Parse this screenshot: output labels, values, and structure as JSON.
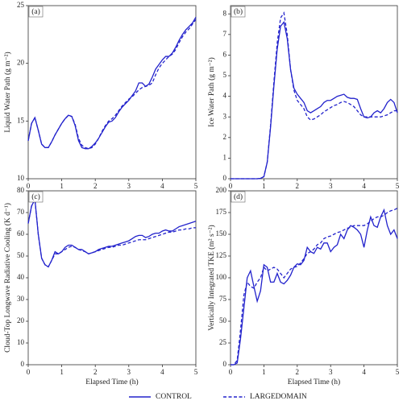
{
  "chart_data": [
    {
      "type": "line",
      "label": "(a)",
      "ylabel": "Liquid Water Path (g m⁻²)",
      "x": [
        0,
        0.1,
        0.2,
        0.3,
        0.4,
        0.5,
        0.6,
        0.7,
        0.8,
        0.9,
        1,
        1.1,
        1.2,
        1.3,
        1.4,
        1.5,
        1.6,
        1.7,
        1.8,
        1.9,
        2,
        2.1,
        2.2,
        2.3,
        2.4,
        2.5,
        2.6,
        2.7,
        2.8,
        2.9,
        3,
        3.1,
        3.2,
        3.3,
        3.4,
        3.5,
        3.6,
        3.7,
        3.8,
        3.9,
        4,
        4.1,
        4.2,
        4.3,
        4.4,
        4.5,
        4.6,
        4.7,
        4.8,
        4.9,
        5
      ],
      "xlim": [
        0,
        5
      ],
      "xticks": [
        0,
        1,
        2,
        3,
        4,
        5
      ],
      "ylim": [
        10,
        25
      ],
      "yticks": [
        10,
        15,
        20,
        25
      ],
      "series": [
        {
          "name": "CONTROL",
          "color": "#2222cc",
          "linestyle": "solid",
          "values": [
            13.3,
            14.8,
            15.3,
            14.2,
            13.0,
            12.7,
            12.7,
            13.2,
            13.8,
            14.3,
            14.8,
            15.2,
            15.5,
            15.4,
            14.6,
            13.3,
            12.7,
            12.6,
            12.6,
            12.8,
            13.1,
            13.5,
            14.0,
            14.5,
            14.9,
            15.0,
            15.3,
            15.8,
            16.2,
            16.5,
            16.8,
            17.2,
            17.6,
            18.3,
            18.3,
            18.0,
            18.2,
            18.8,
            19.5,
            19.9,
            20.3,
            20.6,
            20.6,
            20.9,
            21.4,
            22.0,
            22.5,
            22.9,
            23.2,
            23.5,
            24.0
          ]
        },
        {
          "name": "LARGEDOMAIN",
          "color": "#2222cc",
          "linestyle": "dashed",
          "values": [
            13.3,
            14.8,
            15.3,
            14.2,
            13.0,
            12.7,
            12.7,
            13.2,
            13.8,
            14.3,
            14.8,
            15.2,
            15.5,
            15.4,
            14.7,
            13.5,
            12.9,
            12.7,
            12.6,
            12.7,
            13.0,
            13.5,
            14.1,
            14.6,
            15.0,
            15.2,
            15.5,
            15.9,
            16.3,
            16.6,
            16.9,
            17.1,
            17.4,
            17.7,
            17.9,
            18.0,
            18.1,
            18.3,
            19.0,
            19.6,
            20.0,
            20.3,
            20.6,
            20.8,
            21.2,
            21.8,
            22.3,
            22.7,
            23.0,
            23.4,
            23.8
          ]
        }
      ]
    },
    {
      "type": "line",
      "label": "(b)",
      "ylabel": "Ice Water Path (g m⁻²)",
      "x": [
        0,
        0.1,
        0.2,
        0.3,
        0.4,
        0.5,
        0.6,
        0.7,
        0.8,
        0.9,
        1,
        1.1,
        1.2,
        1.3,
        1.4,
        1.5,
        1.6,
        1.7,
        1.8,
        1.9,
        2,
        2.1,
        2.2,
        2.3,
        2.4,
        2.5,
        2.6,
        2.7,
        2.8,
        2.9,
        3,
        3.1,
        3.2,
        3.3,
        3.4,
        3.5,
        3.6,
        3.7,
        3.8,
        3.9,
        4,
        4.1,
        4.2,
        4.3,
        4.4,
        4.5,
        4.6,
        4.7,
        4.8,
        4.9,
        5
      ],
      "xlim": [
        0,
        5
      ],
      "xticks": [
        0,
        1,
        2,
        3,
        4,
        5
      ],
      "ylim": [
        0,
        8.4
      ],
      "yticks": [
        0,
        1,
        2,
        3,
        4,
        5,
        6,
        7,
        8
      ],
      "series": [
        {
          "color": "#2222cc",
          "linestyle": "solid",
          "values": [
            0,
            0,
            0,
            0,
            0,
            0,
            0,
            0,
            0,
            0.02,
            0.1,
            0.8,
            2.5,
            4.5,
            6.3,
            7.4,
            7.6,
            6.8,
            5.3,
            4.4,
            4.1,
            3.9,
            3.7,
            3.3,
            3.2,
            3.3,
            3.4,
            3.5,
            3.7,
            3.8,
            3.8,
            3.9,
            4.0,
            4.05,
            4.1,
            3.95,
            3.9,
            3.9,
            3.85,
            3.4,
            3.0,
            2.95,
            3.0,
            3.2,
            3.3,
            3.2,
            3.4,
            3.7,
            3.85,
            3.7,
            3.2
          ]
        },
        {
          "color": "#2222cc",
          "linestyle": "dashed",
          "values": [
            0,
            0,
            0,
            0,
            0,
            0,
            0,
            0,
            0,
            0.02,
            0.1,
            0.8,
            2.6,
            4.7,
            6.6,
            7.8,
            8.05,
            7.0,
            5.3,
            4.3,
            3.8,
            3.6,
            3.4,
            3.0,
            2.85,
            2.9,
            3.0,
            3.1,
            3.25,
            3.35,
            3.45,
            3.55,
            3.6,
            3.7,
            3.75,
            3.7,
            3.6,
            3.5,
            3.3,
            3.1,
            3.0,
            3.0,
            3.0,
            3.0,
            3.0,
            3.0,
            3.05,
            3.1,
            3.2,
            3.3,
            3.3
          ]
        }
      ]
    },
    {
      "type": "line",
      "label": "(c)",
      "ylabel": "Cloud-Top Longwave Radiative Cooling (K d⁻¹)",
      "xlabel": "Elapsed Time (h)",
      "x": [
        0,
        0.1,
        0.2,
        0.3,
        0.4,
        0.5,
        0.6,
        0.7,
        0.8,
        0.9,
        1,
        1.1,
        1.2,
        1.3,
        1.4,
        1.5,
        1.6,
        1.7,
        1.8,
        1.9,
        2,
        2.1,
        2.2,
        2.3,
        2.4,
        2.5,
        2.6,
        2.7,
        2.8,
        2.9,
        3,
        3.1,
        3.2,
        3.3,
        3.4,
        3.5,
        3.6,
        3.7,
        3.8,
        3.9,
        4,
        4.1,
        4.2,
        4.3,
        4.4,
        4.5,
        4.6,
        4.7,
        4.8,
        4.9,
        5
      ],
      "xlim": [
        0,
        5
      ],
      "xticks": [
        0,
        1,
        2,
        3,
        4,
        5
      ],
      "ylim": [
        0,
        80
      ],
      "yticks": [
        0,
        10,
        20,
        30,
        40,
        50,
        60,
        70,
        80
      ],
      "series": [
        {
          "color": "#2222cc",
          "linestyle": "solid",
          "values": [
            65,
            73,
            76,
            60,
            49,
            46,
            45,
            48,
            52,
            51,
            52,
            54,
            55,
            55,
            54,
            53,
            53,
            52,
            51,
            51.5,
            52,
            53,
            53.5,
            54,
            54.5,
            54.5,
            55,
            55.5,
            56,
            56.5,
            57,
            58,
            59,
            59.5,
            59.5,
            58.5,
            59,
            60,
            60.5,
            60.5,
            61.5,
            62,
            61.5,
            61.5,
            62.5,
            63.5,
            64,
            64.5,
            65,
            65.5,
            66
          ]
        },
        {
          "color": "#2222cc",
          "linestyle": "dashed",
          "values": [
            65,
            73,
            76,
            60,
            49,
            46,
            45,
            48,
            51,
            51,
            52,
            53,
            54,
            54.5,
            54,
            53,
            52.5,
            52,
            51,
            51.5,
            52,
            52.5,
            53,
            53.5,
            54,
            54,
            54.5,
            55,
            55,
            55.5,
            56,
            56.5,
            57,
            57.5,
            57.5,
            57.5,
            58,
            58.5,
            59,
            59.5,
            60,
            60.5,
            61,
            61,
            61.5,
            62,
            62,
            62.5,
            62.5,
            63,
            63
          ]
        }
      ]
    },
    {
      "type": "line",
      "label": "(d)",
      "ylabel": "Vertically Integrated TKE (m² s⁻²)",
      "xlabel": "Elapsed Time (h)",
      "x": [
        0,
        0.1,
        0.2,
        0.3,
        0.4,
        0.5,
        0.6,
        0.7,
        0.8,
        0.9,
        1,
        1.1,
        1.2,
        1.3,
        1.4,
        1.5,
        1.6,
        1.7,
        1.8,
        1.9,
        2,
        2.1,
        2.2,
        2.3,
        2.4,
        2.5,
        2.6,
        2.7,
        2.8,
        2.9,
        3,
        3.1,
        3.2,
        3.3,
        3.4,
        3.5,
        3.6,
        3.7,
        3.8,
        3.9,
        4,
        4.1,
        4.2,
        4.3,
        4.4,
        4.5,
        4.6,
        4.7,
        4.8,
        4.9,
        5
      ],
      "xlim": [
        0,
        5
      ],
      "xticks": [
        0,
        1,
        2,
        3,
        4,
        5
      ],
      "ylim": [
        0,
        200
      ],
      "yticks": [
        0,
        25,
        50,
        75,
        100,
        125,
        150,
        175,
        200
      ],
      "series": [
        {
          "color": "#2222cc",
          "linestyle": "solid",
          "values": [
            0,
            0,
            2,
            30,
            65,
            100,
            108,
            90,
            73,
            85,
            115,
            112,
            95,
            95,
            105,
            95,
            93,
            97,
            103,
            112,
            116,
            115,
            120,
            135,
            130,
            128,
            135,
            133,
            140,
            140,
            130,
            135,
            138,
            150,
            145,
            155,
            160,
            158,
            155,
            150,
            135,
            155,
            170,
            160,
            158,
            170,
            178,
            160,
            150,
            155,
            145
          ]
        },
        {
          "color": "#2222cc",
          "linestyle": "dashed",
          "values": [
            0,
            0,
            5,
            40,
            80,
            95,
            90,
            88,
            95,
            100,
            112,
            108,
            110,
            112,
            110,
            105,
            100,
            105,
            110,
            112,
            113,
            117,
            122,
            128,
            130,
            133,
            138,
            140,
            145,
            147,
            148,
            150,
            152,
            153,
            155,
            157,
            158,
            160,
            160,
            160,
            160,
            162,
            165,
            168,
            170,
            170,
            172,
            175,
            177,
            178,
            180
          ]
        }
      ]
    }
  ]
}
